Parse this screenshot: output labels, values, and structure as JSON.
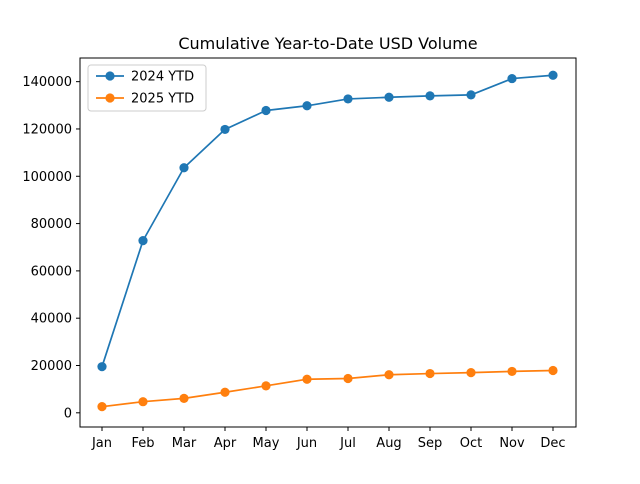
{
  "chart_data": {
    "type": "line",
    "title": "Cumulative Year-to-Date USD Volume",
    "xlabel": "",
    "ylabel": "",
    "categories": [
      "Jan",
      "Feb",
      "Mar",
      "Apr",
      "May",
      "Jun",
      "Jul",
      "Aug",
      "Sep",
      "Oct",
      "Nov",
      "Dec"
    ],
    "ylim": [
      -6000,
      150000
    ],
    "yticks": [
      0,
      20000,
      40000,
      60000,
      80000,
      100000,
      120000,
      140000
    ],
    "ytick_labels": [
      "0",
      "20000",
      "40000",
      "60000",
      "80000",
      "100000",
      "120000",
      "140000"
    ],
    "grid": false,
    "legend_position": "top-left",
    "series": [
      {
        "name": "2024 YTD",
        "color": "#1f77b4",
        "marker": "circle",
        "values": [
          19500,
          72800,
          103600,
          119800,
          127800,
          129800,
          132700,
          133400,
          134000,
          134400,
          141300,
          142700
        ]
      },
      {
        "name": "2025 YTD",
        "color": "#ff7f0e",
        "marker": "circle",
        "values": [
          2600,
          4700,
          6100,
          8700,
          11400,
          14200,
          14500,
          16100,
          16600,
          17000,
          17500,
          17900
        ]
      }
    ]
  }
}
